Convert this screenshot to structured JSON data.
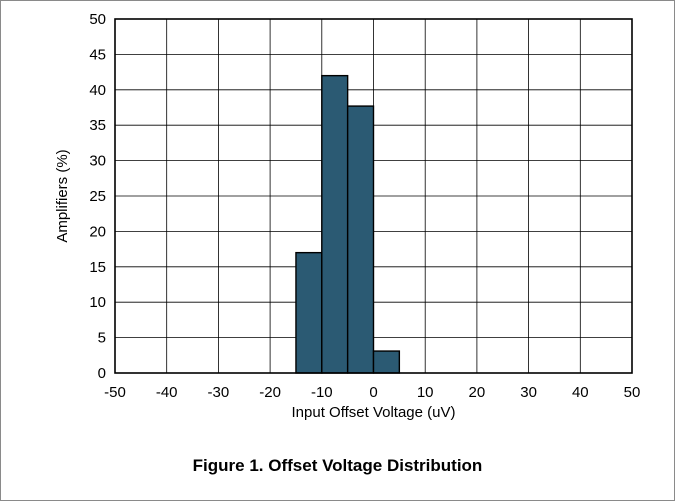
{
  "caption": "Figure 1. Offset Voltage Distribution",
  "chart_data": {
    "type": "bar",
    "subtype": "histogram",
    "title": "",
    "xlabel": "Input Offset Voltage (uV)",
    "ylabel": "Amplifiers (%)",
    "xlim": [
      -50,
      50
    ],
    "ylim": [
      0,
      50
    ],
    "x_ticks": [
      "-50",
      "-40",
      "-30",
      "-20",
      "-10",
      "0",
      "10",
      "20",
      "30",
      "40",
      "50"
    ],
    "y_ticks": [
      "0",
      "5",
      "10",
      "15",
      "20",
      "25",
      "30",
      "35",
      "40",
      "45",
      "50"
    ],
    "bin_width": 5,
    "bins": [
      {
        "start": -15,
        "end": -10,
        "value": 17
      },
      {
        "start": -10,
        "end": -5,
        "value": 42
      },
      {
        "start": -5,
        "end": 0,
        "value": 37.7
      },
      {
        "start": 0,
        "end": 5,
        "value": 3.1
      }
    ],
    "grid": true,
    "legend": "none",
    "colors": {
      "bar": "#2b5a73",
      "bar_edge": "#000000",
      "grid": "#000000"
    }
  }
}
